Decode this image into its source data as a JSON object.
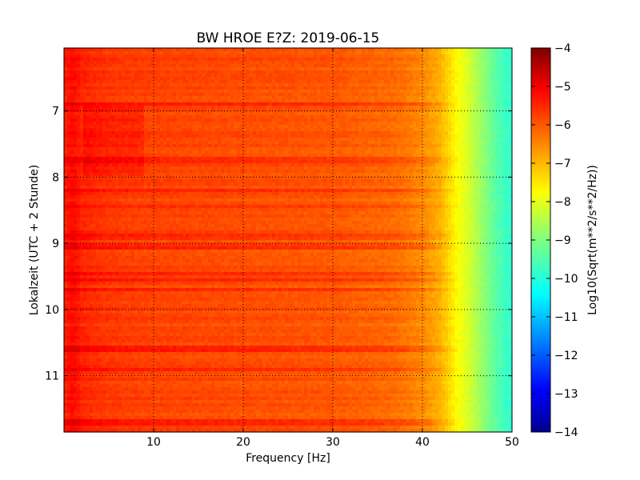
{
  "chart_data": {
    "type": "heatmap",
    "title": "BW HROE E?Z: 2019-06-15",
    "xlabel": "Frequency [Hz]",
    "ylabel": "Lokalzeit (UTC + 2 Stunde)",
    "xlim": [
      0,
      50
    ],
    "ylim": [
      11.85,
      6.05
    ],
    "y_inverted": true,
    "x_ticks": [
      10,
      20,
      30,
      40,
      50
    ],
    "y_ticks": [
      7,
      8,
      9,
      10,
      11
    ],
    "grid": true,
    "grid_style": "dotted",
    "colormap": "jet",
    "colorbar": {
      "label": "Log10(Sqrt(m**2/s**2/Hz))",
      "range": [
        -14,
        -4
      ],
      "ticks": [
        -4,
        -5,
        -6,
        -7,
        -8,
        -9,
        -10,
        -11,
        -12,
        -13,
        -14
      ]
    },
    "spectrum_profile": {
      "frequency_hz": [
        0,
        1,
        2,
        5,
        10,
        20,
        30,
        37,
        40,
        42,
        43,
        44,
        45,
        46,
        47,
        48,
        49,
        50
      ],
      "log10_amplitude": [
        -5.6,
        -5.3,
        -5.6,
        -5.8,
        -5.9,
        -6.0,
        -6.1,
        -6.3,
        -6.6,
        -7.0,
        -7.4,
        -7.8,
        -8.1,
        -8.5,
        -8.9,
        -9.3,
        -9.6,
        -9.8
      ]
    },
    "strong_bands_hours": [
      6.9,
      7.75,
      8.2,
      8.45,
      8.9,
      9.05,
      9.45,
      9.55,
      9.7,
      10.6,
      10.9,
      11.7
    ]
  }
}
